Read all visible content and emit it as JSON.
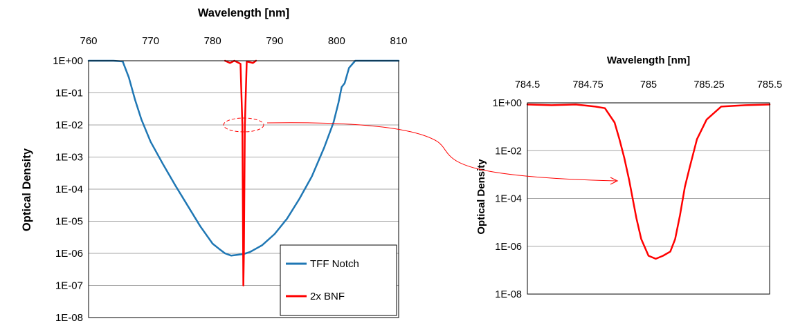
{
  "chart_data": [
    {
      "type": "line",
      "xlabel": "Wavelength [nm]",
      "ylabel": "Optical Density",
      "xlim": [
        760,
        810
      ],
      "ylim": [
        1e-08,
        1
      ],
      "yscale": "log",
      "x_ticks": [
        "760",
        "770",
        "780",
        "790",
        "800",
        "810"
      ],
      "y_ticks": [
        "1E+00",
        "1E-01",
        "1E-02",
        "1E-03",
        "1E-04",
        "1E-05",
        "1E-06",
        "1E-07",
        "1E-08"
      ],
      "grid": "horizontal",
      "legend_position": "bottom-right",
      "series": [
        {
          "name": "TFF Notch",
          "color": "#1F77B4",
          "x": [
            760,
            764,
            765.5,
            766.5,
            767.5,
            768.5,
            770,
            772,
            774,
            776,
            778,
            780,
            781,
            782,
            783,
            784,
            785,
            786,
            787,
            788,
            790,
            792,
            794,
            796,
            798,
            799.5,
            800.3,
            800.8,
            801.3,
            802,
            803,
            806,
            810
          ],
          "y": [
            1,
            1,
            0.95,
            0.3,
            0.06,
            0.015,
            0.003,
            0.0006,
            0.00013,
            3e-05,
            7e-06,
            2e-06,
            1.4e-06,
            1e-06,
            8.5e-07,
            9e-07,
            9.5e-07,
            1.1e-06,
            1.4e-06,
            1.8e-06,
            4e-06,
            1.2e-05,
            5e-05,
            0.00025,
            0.002,
            0.012,
            0.05,
            0.15,
            0.2,
            0.6,
            1,
            1,
            1
          ]
        },
        {
          "name": "2x BNF",
          "color": "#FF0000",
          "x": [
            782,
            782.8,
            783.5,
            784,
            784.5,
            784.8,
            784.95,
            785.05,
            785.2,
            785.5,
            786,
            786.5,
            787
          ],
          "y": [
            1,
            0.85,
            1,
            0.9,
            0.8,
            0.01,
            1e-07,
            1e-06,
            0.01,
            0.95,
            0.9,
            0.85,
            1
          ]
        }
      ]
    },
    {
      "type": "line",
      "xlabel": "Wavelength [nm]",
      "ylabel": "Optical Density",
      "xlim": [
        784.5,
        785.5
      ],
      "ylim": [
        1e-08,
        1
      ],
      "yscale": "log",
      "x_ticks": [
        "784.5",
        "784.75",
        "785",
        "785.25",
        "785.5"
      ],
      "y_ticks": [
        "1E+00",
        "1E-02",
        "1E-04",
        "1E-06",
        "1E-08"
      ],
      "grid": "horizontal",
      "series": [
        {
          "name": "2x BNF",
          "color": "#FF0000",
          "x": [
            784.5,
            784.6,
            784.7,
            784.78,
            784.82,
            784.86,
            784.88,
            784.9,
            784.92,
            784.95,
            784.97,
            785.0,
            785.03,
            785.06,
            785.09,
            785.11,
            785.13,
            785.15,
            785.17,
            785.2,
            785.24,
            785.3,
            785.4,
            785.5
          ],
          "y": [
            0.85,
            0.8,
            0.85,
            0.7,
            0.6,
            0.15,
            0.03,
            0.005,
            0.0006,
            1.5e-05,
            2e-06,
            4e-07,
            3e-07,
            4e-07,
            6e-07,
            2e-06,
            2e-05,
            0.0003,
            0.002,
            0.03,
            0.2,
            0.7,
            0.8,
            0.85
          ]
        }
      ]
    }
  ]
}
